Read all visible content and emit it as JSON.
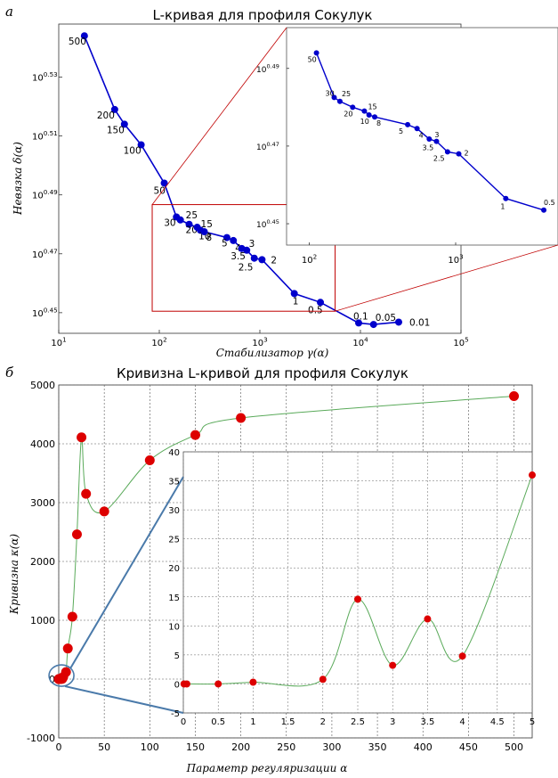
{
  "panel_letters": {
    "a": "а",
    "b": "б"
  },
  "chart_data": [
    {
      "type": "line",
      "title": "L-кривая для профиля Сокулук",
      "xlabel": "Стабилизатор γ(α)",
      "ylabel": "Невязка δ(α)",
      "x_scale": "log",
      "y_scale": "log",
      "xlim": [
        10,
        100000
      ],
      "ylim_log10": [
        0.443,
        0.548
      ],
      "x_tick_labels": [
        "10^1",
        "10^2",
        "10^3",
        "10^4",
        "10^5"
      ],
      "y_tick_labels": [
        "10^0.45",
        "10^0.47",
        "10^0.49",
        "10^0.51",
        "10^0.53"
      ],
      "grid": false,
      "line_color": "#0000cc",
      "points": [
        {
          "label": "500",
          "x": 18,
          "log10_y": 0.544
        },
        {
          "label": "200",
          "x": 36,
          "log10_y": 0.519
        },
        {
          "label": "150",
          "x": 45,
          "log10_y": 0.514
        },
        {
          "label": "100",
          "x": 66,
          "log10_y": 0.507
        },
        {
          "label": "50",
          "x": 112,
          "log10_y": 0.494
        },
        {
          "label": "30",
          "x": 148,
          "log10_y": 0.4825
        },
        {
          "label": "25",
          "x": 162,
          "log10_y": 0.4815
        },
        {
          "label": "20",
          "x": 198,
          "log10_y": 0.48
        },
        {
          "label": "15",
          "x": 238,
          "log10_y": 0.479
        },
        {
          "label": "10",
          "x": 256,
          "log10_y": 0.478
        },
        {
          "label": "8",
          "x": 280,
          "log10_y": 0.4775
        },
        {
          "label": "5",
          "x": 470,
          "log10_y": 0.4755
        },
        {
          "label": "4",
          "x": 545,
          "log10_y": 0.4745
        },
        {
          "label": "3",
          "x": 660,
          "log10_y": 0.4718
        },
        {
          "label": "3.5",
          "x": 740,
          "log10_y": 0.4712
        },
        {
          "label": "2.5",
          "x": 880,
          "log10_y": 0.4685
        },
        {
          "label": "2",
          "x": 1050,
          "log10_y": 0.468
        },
        {
          "label": "1",
          "x": 2200,
          "log10_y": 0.4565
        },
        {
          "label": "0.5",
          "x": 4000,
          "log10_y": 0.4535
        },
        {
          "label": "0.1",
          "x": 9600,
          "log10_y": 0.4465
        },
        {
          "label": "0.05",
          "x": 13500,
          "log10_y": 0.446
        },
        {
          "label": "0.01",
          "x": 24000,
          "log10_y": 0.4468
        }
      ],
      "inset": {
        "x_tick_labels": [
          "10^2",
          "10^3"
        ],
        "y_tick_labels": [
          "10^0.45",
          "10^0.47",
          "10^0.49"
        ],
        "xlim": [
          70,
          5000
        ],
        "ylim_log10": [
          0.4445,
          0.5005
        ],
        "points": [
          {
            "label": "50",
            "x": 112,
            "log10_y": 0.494
          },
          {
            "label": "30",
            "x": 148,
            "log10_y": 0.4825
          },
          {
            "label": "25",
            "x": 162,
            "log10_y": 0.4815
          },
          {
            "label": "20",
            "x": 198,
            "log10_y": 0.48
          },
          {
            "label": "15",
            "x": 238,
            "log10_y": 0.479
          },
          {
            "label": "10",
            "x": 256,
            "log10_y": 0.478
          },
          {
            "label": "8",
            "x": 280,
            "log10_y": 0.4775
          },
          {
            "label": "5",
            "x": 470,
            "log10_y": 0.4755
          },
          {
            "label": "4",
            "x": 545,
            "log10_y": 0.4745
          },
          {
            "label": "3",
            "x": 660,
            "log10_y": 0.4718
          },
          {
            "label": "3.5",
            "x": 740,
            "log10_y": 0.4712
          },
          {
            "label": "2.5",
            "x": 880,
            "log10_y": 0.4685
          },
          {
            "label": "2",
            "x": 1050,
            "log10_y": 0.468
          },
          {
            "label": "1",
            "x": 2200,
            "log10_y": 0.4565
          },
          {
            "label": "0.5",
            "x": 4000,
            "log10_y": 0.4535
          }
        ]
      },
      "zoom_box_color": "#c00000"
    },
    {
      "type": "line",
      "title": "Кривизна L-кривой для профиля Сокулук",
      "xlabel": "Параметр регуляризации α",
      "ylabel": "Кривизна κ(α)",
      "xlim": [
        0,
        520
      ],
      "ylim": [
        -1000,
        5000
      ],
      "x_ticks": [
        0,
        50,
        100,
        150,
        200,
        250,
        300,
        350,
        400,
        450,
        500
      ],
      "y_ticks": [
        -1000,
        0,
        1000,
        2000,
        3000,
        4000,
        5000
      ],
      "grid": true,
      "line_color": "#5aaa5a",
      "marker_color": "#dd0000",
      "points": [
        {
          "x": 0.01,
          "y": 0
        },
        {
          "x": 0.05,
          "y": 0
        },
        {
          "x": 0.1,
          "y": 0
        },
        {
          "x": 0.5,
          "y": 0
        },
        {
          "x": 1,
          "y": 0
        },
        {
          "x": 2,
          "y": 1
        },
        {
          "x": 2.5,
          "y": 15
        },
        {
          "x": 3,
          "y": 3
        },
        {
          "x": 3.5,
          "y": 11
        },
        {
          "x": 4,
          "y": 5
        },
        {
          "x": 5,
          "y": 36
        },
        {
          "x": 8,
          "y": 120
        },
        {
          "x": 10,
          "y": 520
        },
        {
          "x": 15,
          "y": 1060
        },
        {
          "x": 20,
          "y": 2460
        },
        {
          "x": 25,
          "y": 4110
        },
        {
          "x": 30,
          "y": 3150
        },
        {
          "x": 50,
          "y": 2850
        },
        {
          "x": 100,
          "y": 3720
        },
        {
          "x": 150,
          "y": 4150
        },
        {
          "x": 200,
          "y": 4440
        },
        {
          "x": 500,
          "y": 4810
        }
      ],
      "inset": {
        "xlim": [
          0,
          5
        ],
        "ylim": [
          -5,
          40
        ],
        "x_ticks": [
          0,
          0.5,
          1,
          1.5,
          2,
          2.5,
          3,
          3.5,
          4,
          4.5,
          5
        ],
        "y_ticks": [
          -5,
          0,
          5,
          10,
          15,
          20,
          25,
          30,
          35,
          40
        ],
        "points": [
          {
            "x": 0.01,
            "y": 0
          },
          {
            "x": 0.05,
            "y": 0
          },
          {
            "x": 0.5,
            "y": 0
          },
          {
            "x": 1,
            "y": 0.3
          },
          {
            "x": 2,
            "y": 0.8
          },
          {
            "x": 2.5,
            "y": 14.6
          },
          {
            "x": 3,
            "y": 3.2
          },
          {
            "x": 3.5,
            "y": 11.2
          },
          {
            "x": 4,
            "y": 4.8
          },
          {
            "x": 5,
            "y": 36
          }
        ]
      },
      "zoom_marker_color": "#4a7aaa"
    }
  ]
}
